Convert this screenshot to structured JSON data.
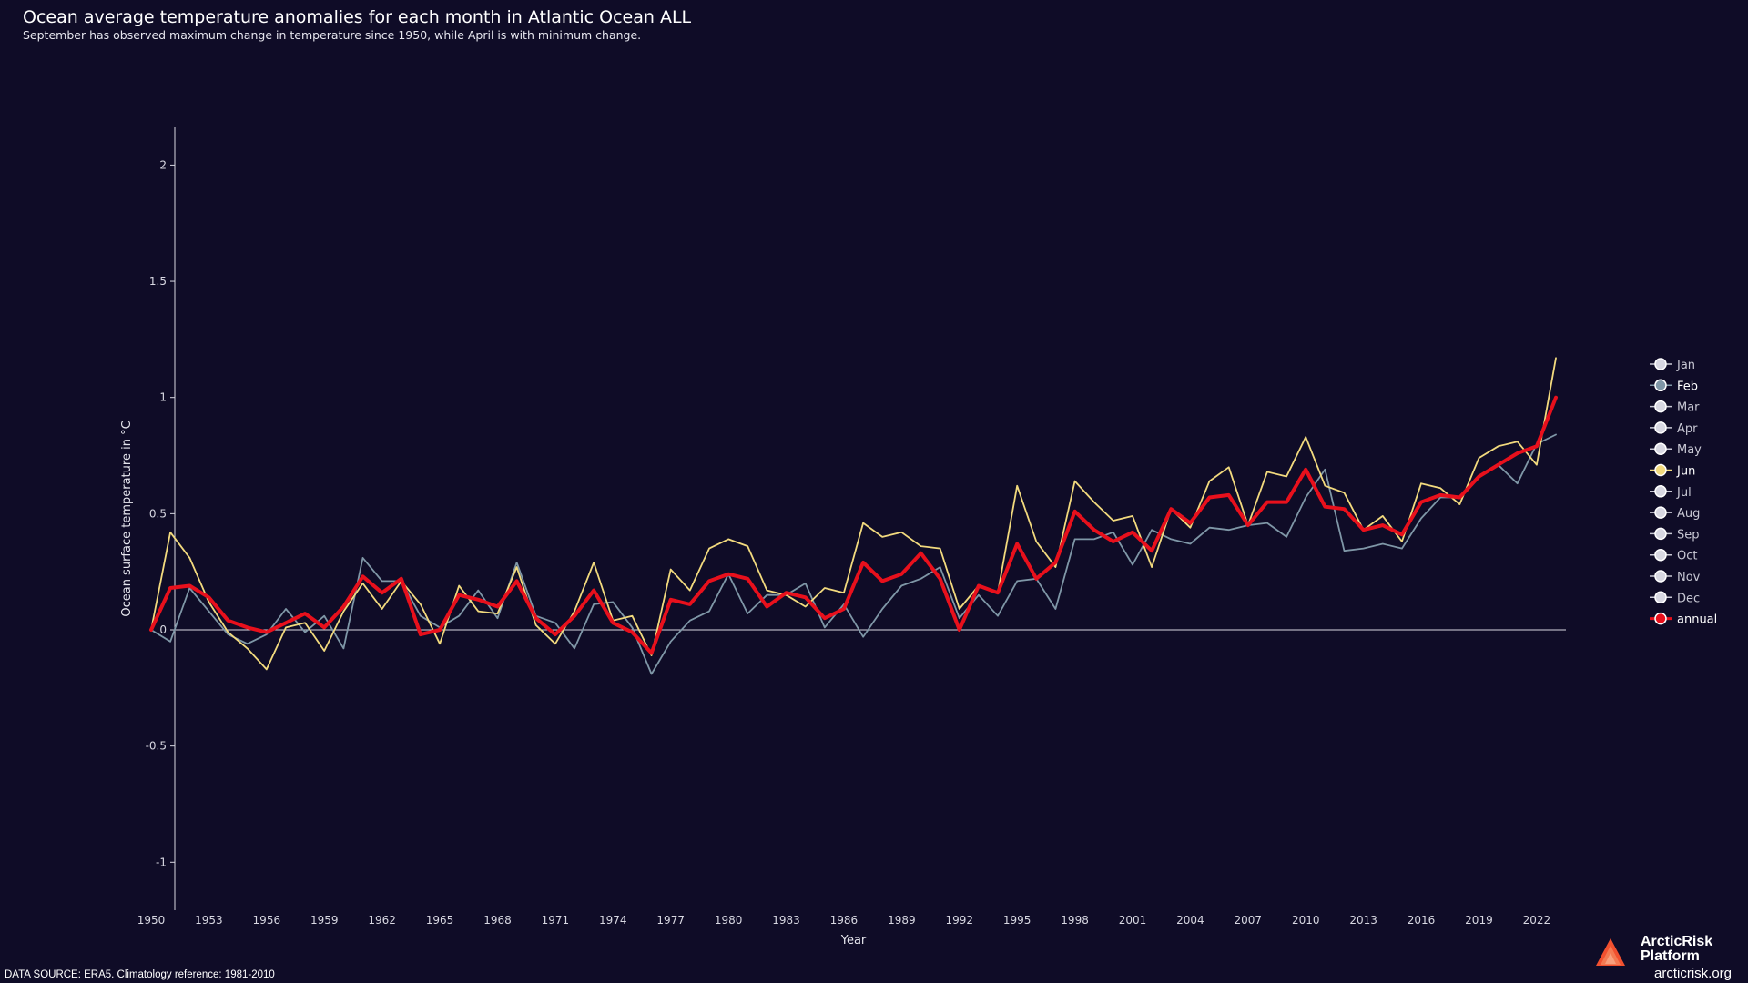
{
  "header": {
    "title": "Ocean average temperature anomalies for each month in Atlantic Ocean ALL",
    "subtitle": "September has observed maximum change in temperature since 1950, while April is with minimum change."
  },
  "footer": {
    "data_source": "DATA SOURCE: ERA5. Climatology reference: 1981-2010",
    "brand_name": "ArcticRisk Platform",
    "brand_url": "arcticrisk.org"
  },
  "colors": {
    "background": "#0f0c27",
    "Feb": "#7f97a7",
    "Jun": "#f2da7e",
    "annual": "#e8101c",
    "inactive": "#c8c8d4",
    "axis": "#d8d8e2"
  },
  "chart_data": {
    "type": "line",
    "title": "Ocean average temperature anomalies for each month in Atlantic Ocean ALL",
    "subtitle": "September has observed maximum change in temperature since 1950, while April is with minimum change.",
    "xlabel": "Year",
    "ylabel": "Ocean surface temperature in °C",
    "xlim": [
      1950,
      2023
    ],
    "ylim": [
      -1.2,
      2.2
    ],
    "x_ticks": [
      1950,
      1953,
      1956,
      1959,
      1962,
      1965,
      1968,
      1971,
      1974,
      1977,
      1980,
      1983,
      1986,
      1989,
      1992,
      1995,
      1998,
      2001,
      2004,
      2007,
      2010,
      2013,
      2016,
      2019,
      2022
    ],
    "y_ticks": [
      -1,
      -0.5,
      0,
      0.5,
      1,
      1.5,
      2
    ],
    "y_tick_labels": [
      "-1",
      "-0.5",
      "0",
      "0.5",
      "1",
      "1.5",
      "2"
    ],
    "legend_position": "right",
    "legend_entries": [
      "Jan",
      "Feb",
      "Mar",
      "Apr",
      "May",
      "Jun",
      "Jul",
      "Aug",
      "Sep",
      "Oct",
      "Nov",
      "Dec",
      "annual"
    ],
    "visible_series": [
      "Feb",
      "Jun",
      "annual"
    ],
    "x": [
      1950,
      1951,
      1952,
      1953,
      1954,
      1955,
      1956,
      1957,
      1958,
      1959,
      1960,
      1961,
      1962,
      1963,
      1964,
      1965,
      1966,
      1967,
      1968,
      1969,
      1970,
      1971,
      1972,
      1973,
      1974,
      1975,
      1976,
      1977,
      1978,
      1979,
      1980,
      1981,
      1982,
      1983,
      1984,
      1985,
      1986,
      1987,
      1988,
      1989,
      1990,
      1991,
      1992,
      1993,
      1994,
      1995,
      1996,
      1997,
      1998,
      1999,
      2000,
      2001,
      2002,
      2003,
      2004,
      2005,
      2006,
      2007,
      2008,
      2009,
      2010,
      2011,
      2012,
      2013,
      2014,
      2015,
      2016,
      2017,
      2018,
      2019,
      2020,
      2021,
      2022,
      2023
    ],
    "series": [
      {
        "name": "Feb",
        "values": [
          0.0,
          -0.05,
          0.18,
          0.08,
          -0.02,
          -0.06,
          -0.02,
          0.09,
          -0.01,
          0.06,
          -0.08,
          0.31,
          0.21,
          0.21,
          0.06,
          0.01,
          0.06,
          0.17,
          0.05,
          0.29,
          0.06,
          0.03,
          -0.08,
          0.11,
          0.12,
          0.01,
          -0.19,
          -0.05,
          0.04,
          0.08,
          0.24,
          0.07,
          0.15,
          0.15,
          0.2,
          0.01,
          0.11,
          -0.03,
          0.09,
          0.19,
          0.22,
          0.27,
          0.05,
          0.15,
          0.06,
          0.21,
          0.22,
          0.09,
          0.39,
          0.39,
          0.42,
          0.28,
          0.43,
          0.39,
          0.37,
          0.44,
          0.43,
          0.45,
          0.46,
          0.4,
          0.57,
          0.69,
          0.34,
          0.35,
          0.37,
          0.35,
          0.48,
          0.57,
          0.57,
          0.66,
          0.71,
          0.63,
          0.8,
          0.84
        ]
      },
      {
        "name": "Jun",
        "values": [
          0.0,
          0.42,
          0.31,
          0.12,
          -0.01,
          -0.08,
          -0.17,
          0.01,
          0.03,
          -0.09,
          0.08,
          0.2,
          0.09,
          0.21,
          0.11,
          -0.06,
          0.19,
          0.08,
          0.07,
          0.27,
          0.02,
          -0.06,
          0.08,
          0.29,
          0.04,
          0.06,
          -0.11,
          0.26,
          0.17,
          0.35,
          0.39,
          0.36,
          0.17,
          0.15,
          0.1,
          0.18,
          0.16,
          0.46,
          0.4,
          0.42,
          0.36,
          0.35,
          0.09,
          0.19,
          0.16,
          0.62,
          0.38,
          0.27,
          0.64,
          0.55,
          0.47,
          0.49,
          0.27,
          0.52,
          0.44,
          0.64,
          0.7,
          0.45,
          0.68,
          0.66,
          0.83,
          0.62,
          0.59,
          0.43,
          0.49,
          0.38,
          0.63,
          0.61,
          0.54,
          0.74,
          0.79,
          0.81,
          0.71,
          1.17
        ]
      },
      {
        "name": "annual",
        "values": [
          0.0,
          0.18,
          0.19,
          0.14,
          0.04,
          0.01,
          -0.01,
          0.03,
          0.07,
          0.01,
          0.1,
          0.23,
          0.16,
          0.22,
          -0.02,
          0.0,
          0.15,
          0.13,
          0.1,
          0.21,
          0.05,
          -0.02,
          0.06,
          0.17,
          0.03,
          -0.01,
          -0.1,
          0.13,
          0.11,
          0.21,
          0.24,
          0.22,
          0.1,
          0.16,
          0.14,
          0.05,
          0.09,
          0.29,
          0.21,
          0.24,
          0.33,
          0.22,
          0.0,
          0.19,
          0.16,
          0.37,
          0.22,
          0.29,
          0.51,
          0.43,
          0.38,
          0.42,
          0.34,
          0.52,
          0.46,
          0.57,
          0.58,
          0.45,
          0.55,
          0.55,
          0.69,
          0.53,
          0.52,
          0.43,
          0.45,
          0.41,
          0.55,
          0.58,
          0.57,
          0.66,
          0.71,
          0.76,
          0.79,
          1.0
        ]
      }
    ]
  }
}
